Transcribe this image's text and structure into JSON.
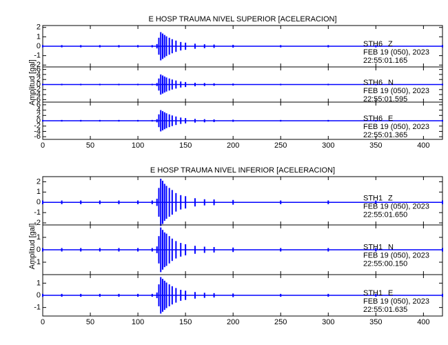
{
  "chart_data": [
    {
      "type": "seismogram",
      "title": "E HOSP TRAUMA NIVEL SUPERIOR [ACELERACION]",
      "ylabel": "Amplitud [gal]",
      "xlim": [
        0,
        420
      ],
      "xticks": [
        0,
        50,
        100,
        150,
        200,
        250,
        300,
        350,
        400
      ],
      "x": [
        0,
        20,
        40,
        60,
        80,
        100,
        115,
        120,
        122,
        124,
        126,
        128,
        130,
        133,
        136,
        140,
        145,
        150,
        160,
        170,
        180,
        200,
        250,
        300,
        350,
        420
      ],
      "traces": [
        {
          "station": "STH6",
          "component": "Z",
          "date": "FEB 19 (050), 2023",
          "time": "22:55:01.165",
          "color": "#0000ff",
          "ylim": [
            -2.2,
            2.2
          ],
          "yticks": [
            -2,
            -1,
            0,
            1,
            2
          ],
          "values": [
            0.12,
            0.12,
            0.12,
            0.12,
            0.12,
            0.12,
            0.12,
            0.23,
            0.9,
            1.5,
            1.35,
            1.2,
            1.05,
            0.9,
            0.75,
            0.6,
            0.45,
            0.38,
            0.27,
            0.21,
            0.18,
            0.15,
            0.12,
            0.12,
            0.12,
            0.12
          ]
        },
        {
          "station": "STH6",
          "component": "N",
          "date": "FEB 19 (050), 2023",
          "time": "22:55:01.595",
          "color": "#0000ff",
          "ylim": [
            -7,
            7
          ],
          "yticks": [
            -6,
            -4,
            -2,
            0,
            2,
            4,
            6
          ],
          "values": [
            0.3,
            0.3,
            0.3,
            0.3,
            0.3,
            0.3,
            0.3,
            0.6,
            2.4,
            4,
            3.6,
            3.2,
            2.8,
            2.4,
            2,
            1.6,
            1.2,
            1,
            0.7,
            0.6,
            0.5,
            0.4,
            0.3,
            0.3,
            0.3,
            0.3
          ]
        },
        {
          "station": "STH6",
          "component": "E",
          "date": "FEB 19 (050), 2023",
          "time": "22:55:01.365",
          "color": "#0000ff",
          "ylim": [
            -7,
            7
          ],
          "yticks": [
            -6,
            -4,
            -2,
            0,
            2,
            4,
            6
          ],
          "values": [
            0.3,
            0.3,
            0.3,
            0.3,
            0.3,
            0.3,
            0.3,
            0.6,
            2.4,
            4,
            3.6,
            3.2,
            2.8,
            2.4,
            2,
            1.6,
            1.2,
            1,
            0.7,
            0.6,
            0.5,
            0.4,
            0.3,
            0.3,
            0.3,
            0.3
          ]
        }
      ]
    },
    {
      "type": "seismogram",
      "title": "E HOSP TRAUMA NIVEL INFERIOR [ACELERACION]",
      "ylabel": "Amplitud [gal]",
      "xlim": [
        0,
        420
      ],
      "xticks": [
        0,
        50,
        100,
        150,
        200,
        250,
        300,
        350,
        400
      ],
      "x": [
        0,
        20,
        40,
        60,
        80,
        100,
        115,
        120,
        122,
        124,
        126,
        128,
        130,
        133,
        136,
        140,
        145,
        150,
        160,
        170,
        180,
        200,
        250,
        300,
        350,
        420
      ],
      "traces": [
        {
          "station": "STH1",
          "component": "Z",
          "date": "FEB 19 (050), 2023",
          "time": "22:55:01.650",
          "color": "#0000ff",
          "ylim": [
            -2.2,
            2.5
          ],
          "yticks": [
            -2,
            -1,
            0,
            1,
            2
          ],
          "values": [
            0.18,
            0.18,
            0.18,
            0.18,
            0.18,
            0.18,
            0.18,
            0.35,
            1.4,
            2.3,
            2.1,
            1.8,
            1.6,
            1.4,
            1.2,
            0.9,
            0.7,
            0.6,
            0.4,
            0.3,
            0.28,
            0.23,
            0.18,
            0.18,
            0.18,
            0.18
          ]
        },
        {
          "station": "STH1",
          "component": "N",
          "date": "FEB 19 (050), 2023",
          "time": "22:55:00.150",
          "color": "#0000ff",
          "ylim": [
            -2,
            2
          ],
          "yticks": [
            -1,
            0,
            1
          ],
          "values": [
            0.14,
            0.14,
            0.14,
            0.14,
            0.14,
            0.14,
            0.14,
            0.27,
            1.1,
            1.8,
            1.6,
            1.4,
            1.3,
            1.1,
            0.9,
            0.7,
            0.55,
            0.45,
            0.32,
            0.25,
            0.22,
            0.18,
            0.14,
            0.14,
            0.14,
            0.14
          ]
        },
        {
          "station": "STH1",
          "component": "E",
          "date": "FEB 19 (050), 2023",
          "time": "22:55:01.635",
          "color": "#0000ff",
          "ylim": [
            -1.7,
            1.7
          ],
          "yticks": [
            -1,
            0,
            1
          ],
          "values": [
            0.12,
            0.12,
            0.12,
            0.12,
            0.12,
            0.12,
            0.12,
            0.23,
            0.9,
            1.5,
            1.35,
            1.2,
            1.05,
            0.9,
            0.75,
            0.6,
            0.45,
            0.38,
            0.27,
            0.21,
            0.18,
            0.15,
            0.12,
            0.12,
            0.12,
            0.12
          ]
        }
      ]
    }
  ]
}
